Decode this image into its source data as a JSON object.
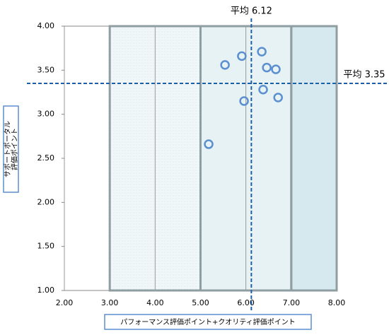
{
  "chart_data": {
    "type": "scatter",
    "xlabel": "パフォーマンス評価ポイント+クオリティ評価ポイント",
    "ylabel": [
      "サポートポータル",
      "評価ポイント"
    ],
    "x": [
      5.54,
      5.91,
      6.35,
      6.46,
      6.66,
      6.38,
      6.71,
      5.96,
      5.18
    ],
    "y": [
      3.56,
      3.66,
      3.71,
      3.53,
      3.51,
      3.28,
      3.19,
      3.15,
      2.66
    ],
    "color": "#5b8fd0",
    "xlim": [
      2,
      8
    ],
    "ylim": [
      1,
      4
    ],
    "xticks": [
      {
        "value": 2,
        "label": "2.00"
      },
      {
        "value": 3,
        "label": "3.00"
      },
      {
        "value": 4,
        "label": "4.00"
      },
      {
        "value": 5,
        "label": "5.00"
      },
      {
        "value": 6,
        "label": "6.00"
      },
      {
        "value": 7,
        "label": "7.00"
      },
      {
        "value": 8,
        "label": "8.00"
      }
    ],
    "yticks": [
      {
        "value": 1,
        "label": "1.00"
      },
      {
        "value": 1.5,
        "label": "1.50"
      },
      {
        "value": 2,
        "label": "2.00"
      },
      {
        "value": 2.5,
        "label": "2.50"
      },
      {
        "value": 3,
        "label": "3.00"
      },
      {
        "value": 3.5,
        "label": "3.50"
      },
      {
        "value": 4,
        "label": "4.00"
      }
    ],
    "grid": "x",
    "regions": [
      {
        "x0": 3,
        "x1": 5,
        "color": "#f1f7f9"
      },
      {
        "x0": 5,
        "x1": 7,
        "color": "#e7f2f5"
      },
      {
        "x0": 7,
        "x1": 8,
        "color": "#d6e9ee"
      }
    ],
    "x_mean": {
      "value": 6.12,
      "label": "平均 6.12"
    },
    "y_mean": {
      "value": 3.35,
      "label": "平均 3.35"
    },
    "mean_color": "#1f5fa8"
  }
}
